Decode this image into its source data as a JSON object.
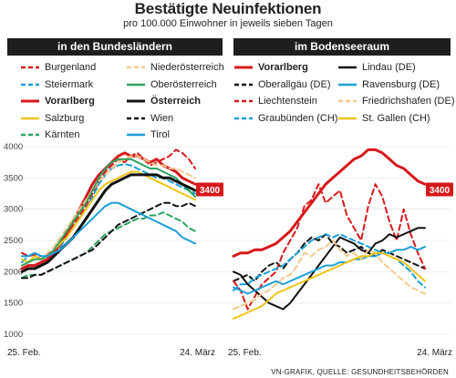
{
  "title": "Bestätigte Neuinfektionen",
  "subtitle": "pro 100.000 Einwohner in jeweils sieben Tagen",
  "source": "VN-GRAFIK, QUELLE: GESUNDHEITSBEHÖRDEN",
  "chart_data": [
    {
      "type": "line",
      "panel_title": "in den Bundesländern",
      "x_start": "25. Feb.",
      "x_end": "24. März",
      "ylim": [
        1000,
        4000
      ],
      "yticks": [
        "1000",
        "1500",
        "2000",
        "2500",
        "3000",
        "3500",
        "4000"
      ],
      "highlight_label": "3400",
      "series": [
        {
          "name": "Burgenland",
          "color": "#d7191c",
          "dash": true,
          "bold": false,
          "values": [
            2300,
            2250,
            2270,
            2200,
            2280,
            2350,
            2450,
            2600,
            2750,
            2900,
            3050,
            3250,
            3450,
            3600,
            3700,
            3800,
            3750,
            3850,
            3900,
            3800,
            3700,
            3750,
            3800,
            3850,
            3950,
            3900,
            3800,
            3650
          ]
        },
        {
          "name": "Steiermark",
          "color": "#1a9fd9",
          "dash": true,
          "bold": false,
          "values": [
            2150,
            2250,
            2300,
            2250,
            2250,
            2300,
            2400,
            2550,
            2700,
            2850,
            3000,
            3200,
            3400,
            3550,
            3650,
            3700,
            3720,
            3700,
            3650,
            3600,
            3550,
            3500,
            3500,
            3450,
            3400,
            3350,
            3300,
            3250
          ]
        },
        {
          "name": "Vorarlberg",
          "color": "#d7191c",
          "dash": false,
          "bold": true,
          "values": [
            2050,
            2100,
            2100,
            2150,
            2200,
            2300,
            2450,
            2600,
            2800,
            3000,
            3200,
            3400,
            3550,
            3650,
            3750,
            3850,
            3900,
            3850,
            3850,
            3800,
            3750,
            3800,
            3700,
            3650,
            3600,
            3500,
            3450,
            3400
          ]
        },
        {
          "name": "Salzburg",
          "color": "#f0c419",
          "dash": false,
          "bold": false,
          "values": [
            2200,
            2150,
            2250,
            2200,
            2250,
            2350,
            2450,
            2550,
            2700,
            2850,
            3000,
            3150,
            3300,
            3400,
            3450,
            3500,
            3550,
            3600,
            3600,
            3550,
            3500,
            3450,
            3400,
            3350,
            3300,
            3250,
            3200,
            3150
          ]
        },
        {
          "name": "Kärnten",
          "color": "#2ca25f",
          "dash": true,
          "bold": false,
          "values": [
            1900,
            1950,
            1950,
            1950,
            2000,
            2050,
            2100,
            2150,
            2200,
            2250,
            2300,
            2400,
            2500,
            2600,
            2650,
            2700,
            2750,
            2800,
            2850,
            2850,
            2900,
            2900,
            2950,
            2900,
            2850,
            2800,
            2700,
            2650
          ]
        },
        {
          "name": "Niederösterreich",
          "color": "#f5c98a",
          "dash": true,
          "bold": false,
          "values": [
            2100,
            2150,
            2200,
            2200,
            2300,
            2400,
            2550,
            2700,
            2850,
            3000,
            3150,
            3300,
            3450,
            3550,
            3650,
            3750,
            3800,
            3850,
            3850,
            3800,
            3750,
            3700,
            3700,
            3650,
            3650,
            3600,
            3550,
            3500
          ]
        },
        {
          "name": "Oberösterreich",
          "color": "#2ca25f",
          "dash": false,
          "bold": false,
          "values": [
            2100,
            2150,
            2200,
            2200,
            2250,
            2350,
            2500,
            2650,
            2800,
            2950,
            3100,
            3300,
            3500,
            3650,
            3750,
            3800,
            3800,
            3800,
            3750,
            3700,
            3650,
            3650,
            3600,
            3550,
            3500,
            3400,
            3300,
            3200
          ]
        },
        {
          "name": "Österreich",
          "color": "#111111",
          "dash": false,
          "bold": true,
          "values": [
            2000,
            2050,
            2050,
            2100,
            2150,
            2250,
            2350,
            2450,
            2550,
            2700,
            2850,
            3000,
            3150,
            3300,
            3400,
            3450,
            3500,
            3550,
            3550,
            3550,
            3550,
            3550,
            3500,
            3500,
            3450,
            3400,
            3350,
            3300
          ]
        },
        {
          "name": "Wien",
          "color": "#111111",
          "dash": true,
          "bold": false,
          "values": [
            1900,
            1900,
            1950,
            1950,
            2000,
            2050,
            2100,
            2150,
            2200,
            2250,
            2300,
            2350,
            2450,
            2550,
            2650,
            2750,
            2800,
            2850,
            2900,
            2950,
            3000,
            3050,
            3100,
            3100,
            3050,
            3050,
            3100,
            3050
          ]
        },
        {
          "name": "Tirol",
          "color": "#1a9fd9",
          "dash": false,
          "bold": false,
          "values": [
            2250,
            2250,
            2300,
            2250,
            2250,
            2300,
            2350,
            2450,
            2550,
            2650,
            2750,
            2850,
            2950,
            3050,
            3100,
            3100,
            3050,
            3000,
            2950,
            2900,
            2850,
            2800,
            2750,
            2700,
            2650,
            2550,
            2500,
            2450
          ]
        }
      ]
    },
    {
      "type": "line",
      "panel_title": "im Bodenseeraum",
      "x_start": "25. Feb.",
      "x_end": "24. März",
      "ylim": [
        1000,
        4000
      ],
      "highlight_label": "3400",
      "series": [
        {
          "name": "Vorarlberg",
          "color": "#d7191c",
          "dash": false,
          "bold": true,
          "values": [
            2250,
            2300,
            2300,
            2350,
            2350,
            2400,
            2450,
            2550,
            2650,
            2800,
            2950,
            3100,
            3250,
            3400,
            3500,
            3600,
            3700,
            3800,
            3850,
            3950,
            3950,
            3900,
            3800,
            3700,
            3650,
            3550,
            3450,
            3400
          ]
        },
        {
          "name": "Oberallgäu (DE)",
          "color": "#111111",
          "dash": true,
          "bold": false,
          "values": [
            1850,
            1900,
            1950,
            1850,
            2000,
            2100,
            2150,
            2050,
            2200,
            2300,
            2450,
            2550,
            2500,
            2600,
            2450,
            2400,
            2300,
            2350,
            2400,
            2300,
            2250,
            2350,
            2300,
            2250,
            2200,
            2150,
            2100,
            2050
          ]
        },
        {
          "name": "Liechtenstein",
          "color": "#d7191c",
          "dash": true,
          "bold": false,
          "values": [
            1850,
            1700,
            1400,
            1600,
            1800,
            1900,
            2000,
            2300,
            2500,
            2700,
            3050,
            3150,
            3400,
            3100,
            3200,
            3300,
            2900,
            2700,
            2500,
            3050,
            3400,
            3200,
            2800,
            2500,
            3000,
            2600,
            2300,
            2050
          ]
        },
        {
          "name": "Graubünden (CH)",
          "color": "#1a9fd9",
          "dash": true,
          "bold": false,
          "values": [
            1700,
            1800,
            1800,
            1900,
            1950,
            2000,
            2050,
            2100,
            2200,
            2300,
            2400,
            2500,
            2550,
            2600,
            2550,
            2600,
            2550,
            2500,
            2450,
            2400,
            2350,
            2300,
            2250,
            2200,
            2100,
            2000,
            1850,
            1750
          ]
        },
        {
          "name": "Lindau (DE)",
          "color": "#111111",
          "dash": false,
          "bold": false,
          "values": [
            2000,
            1950,
            1800,
            1700,
            1600,
            1500,
            1450,
            1400,
            1500,
            1650,
            1800,
            1950,
            2100,
            2250,
            2400,
            2550,
            2500,
            2450,
            2350,
            2300,
            2450,
            2500,
            2600,
            2550,
            2600,
            2650,
            2700,
            2700
          ]
        },
        {
          "name": "Ravensburg (DE)",
          "color": "#1a9fd9",
          "dash": false,
          "bold": false,
          "values": [
            1750,
            1700,
            1650,
            1700,
            1750,
            1800,
            1850,
            1800,
            1850,
            1900,
            1950,
            2000,
            2050,
            2100,
            2100,
            2150,
            2150,
            2200,
            2200,
            2250,
            2250,
            2300,
            2300,
            2350,
            2350,
            2400,
            2350,
            2400
          ]
        },
        {
          "name": "Friedrichshafen (DE)",
          "color": "#f5c98a",
          "dash": true,
          "bold": false,
          "values": [
            1400,
            1450,
            1500,
            1550,
            1650,
            1700,
            1800,
            1900,
            1950,
            2100,
            2300,
            2250,
            2350,
            2400,
            2500,
            2350,
            2250,
            2300,
            2200,
            2350,
            2300,
            2150,
            2050,
            1950,
            1850,
            1750,
            1700,
            1650
          ]
        },
        {
          "name": "St. Gallen (CH)",
          "color": "#f0c419",
          "dash": false,
          "bold": false,
          "values": [
            1250,
            1300,
            1350,
            1400,
            1450,
            1550,
            1650,
            1700,
            1750,
            1800,
            1850,
            1900,
            1950,
            2000,
            2050,
            2100,
            2150,
            2200,
            2250,
            2250,
            2300,
            2300,
            2250,
            2200,
            2150,
            2050,
            1950,
            1850
          ]
        }
      ]
    }
  ]
}
